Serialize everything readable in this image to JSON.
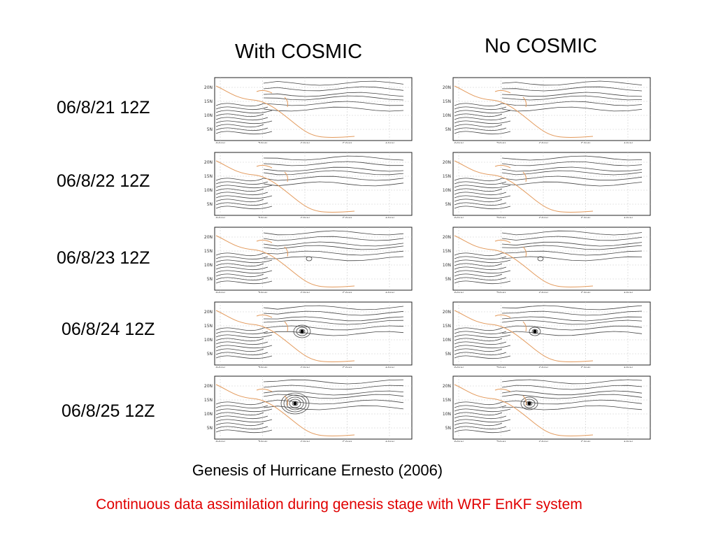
{
  "headers": {
    "with": "With COSMIC",
    "without": "No COSMIC"
  },
  "rows": [
    {
      "label": "06/8/21 12Z"
    },
    {
      "label": "06/8/22 12Z"
    },
    {
      "label": "06/8/23 12Z"
    },
    {
      "label": "06/8/24 12Z"
    },
    {
      "label": "06/8/25 12Z"
    }
  ],
  "map_axes": {
    "lon_ticks": [
      "80W",
      "70W",
      "60W",
      "50W",
      "40W"
    ],
    "lat_ticks": [
      "20N",
      "15N",
      "10N",
      "5N"
    ]
  },
  "colors": {
    "contour": "#444444",
    "coast": "#e39a5c",
    "caption_red": "#e00000"
  },
  "caption": "Genesis of Hurricane Ernesto (2006)",
  "subcaption": "Continuous data assimilation during genesis stage with WRF EnKF system"
}
